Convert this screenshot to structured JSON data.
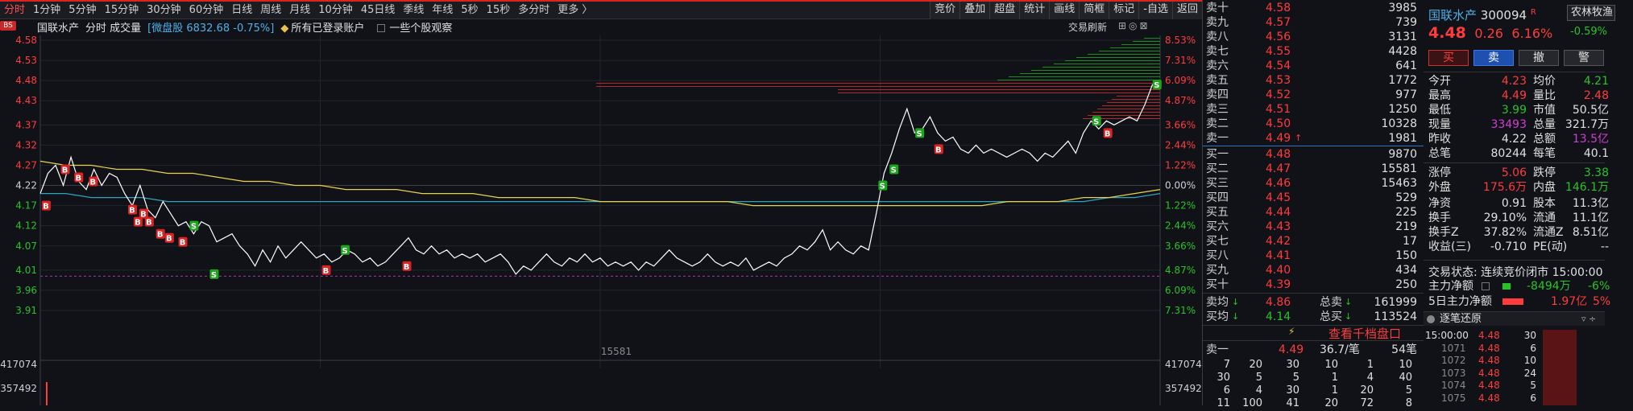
{
  "colors": {
    "up": "#ff3b3b",
    "down": "#26c426",
    "price_line": "#ffffff",
    "avg_line": "#e8d44a",
    "ma_line": "#2aa6c0",
    "flat": "#e0e0e0"
  },
  "toolbar": {
    "tabs": [
      "分时",
      "1分钟",
      "5分钟",
      "15分钟",
      "30分钟",
      "60分钟",
      "日线",
      "周线",
      "月线",
      "10分钟",
      "45日线",
      "季线",
      "年线",
      "5秒",
      "15秒",
      "多分时",
      "更多 〉"
    ],
    "active": "分时",
    "tools": [
      "竞价",
      "叠加",
      "超盘",
      "统计",
      "画线",
      "简框",
      "标记",
      "-自选",
      "返回"
    ]
  },
  "info": {
    "stock": "国联水产",
    "mode": "分时 成交量",
    "index": "[微盘股 6832.68 -0.75%]",
    "account": "所有已登录账户",
    "watch": "一些个股观察",
    "refresh": "交易刷新",
    "badge": "BS"
  },
  "chart_data": {
    "type": "line",
    "title": "国联水产 分时",
    "prev_close": 4.22,
    "price_ticks": [
      "4.58",
      "4.53",
      "4.48",
      "4.43",
      "4.37",
      "4.32",
      "4.27",
      "4.22",
      "4.17",
      "4.12",
      "4.07",
      "4.01",
      "3.96",
      "3.91"
    ],
    "pct_ticks": [
      "8.53%",
      "7.31%",
      "6.09%",
      "4.87%",
      "3.66%",
      "2.44%",
      "1.22%",
      "0.00%",
      "1.22%",
      "2.44%",
      "3.66%",
      "4.87%",
      "6.09%",
      "7.31%"
    ],
    "volume_ticks": [
      "417074",
      "357492"
    ],
    "volume_center_label": "15581",
    "series": [
      {
        "values": [
          4.2,
          4.25,
          4.27,
          4.22,
          4.29,
          4.23,
          4.21,
          4.26,
          4.22,
          4.25,
          4.24,
          4.2,
          4.17,
          4.22,
          4.16,
          4.14,
          4.18,
          4.15,
          4.12,
          4.13,
          4.1,
          4.13,
          4.12,
          4.08,
          4.09,
          4.1,
          4.07,
          4.05,
          4.02,
          4.06,
          4.03,
          4.07,
          4.04,
          4.06,
          4.08,
          4.06,
          4.04,
          4.05,
          4.03,
          4.04,
          4.06,
          4.05,
          4.03,
          4.04,
          4.02,
          4.03,
          4.05,
          4.07,
          4.09,
          4.06,
          4.05,
          4.07,
          4.05,
          4.06,
          4.04,
          4.05,
          4.04,
          4.05,
          4.03,
          4.04,
          4.05,
          4.03,
          4.0,
          4.02,
          4.01,
          4.03,
          4.05,
          4.03,
          4.02,
          4.04,
          4.03,
          4.05,
          4.03,
          4.04,
          4.02,
          4.03,
          4.02,
          4.03,
          4.01,
          4.03,
          4.02,
          4.04,
          4.06,
          4.04,
          4.03,
          4.02,
          4.03,
          4.05,
          4.03,
          4.02,
          4.03,
          4.02,
          4.04,
          4.01,
          4.02,
          4.03,
          4.02,
          4.04,
          4.05,
          4.07,
          4.06,
          4.08,
          4.11,
          4.06,
          4.08,
          4.06,
          4.05,
          4.07,
          4.06,
          4.15,
          4.25,
          4.3,
          4.36,
          4.41,
          4.35,
          4.36,
          4.39,
          4.35,
          4.33,
          4.34,
          4.31,
          4.3,
          4.32,
          4.3,
          4.31,
          4.3,
          4.29,
          4.3,
          4.31,
          4.3,
          4.28,
          4.3,
          4.29,
          4.31,
          4.33,
          4.3,
          4.35,
          4.38,
          4.36,
          4.38,
          4.37,
          4.38,
          4.39,
          4.38,
          4.42,
          4.47,
          4.48
        ]
      },
      {
        "values": [
          4.28,
          4.27,
          4.27,
          4.26,
          4.26,
          4.25,
          4.25,
          4.24,
          4.23,
          4.23,
          4.22,
          4.22,
          4.21,
          4.21,
          4.21,
          4.2,
          4.2,
          4.2,
          4.19,
          4.19,
          4.19,
          4.19,
          4.18,
          4.18,
          4.18,
          4.18,
          4.18,
          4.18,
          4.17,
          4.17,
          4.17,
          4.17,
          4.17,
          4.17,
          4.17,
          4.17,
          4.17,
          4.17,
          4.18,
          4.18,
          4.18,
          4.19,
          4.19,
          4.2,
          4.21
        ]
      },
      {
        "values": [
          4.2,
          4.2,
          4.19,
          4.19,
          4.19,
          4.18,
          4.18,
          4.18,
          4.18,
          4.18,
          4.18,
          4.18,
          4.18,
          4.18,
          4.18,
          4.18,
          4.18,
          4.18,
          4.18,
          4.18,
          4.18,
          4.18,
          4.18,
          4.18,
          4.18,
          4.18,
          4.18,
          4.18,
          4.18,
          4.18,
          4.18,
          4.18,
          4.18,
          4.18,
          4.18,
          4.18,
          4.18,
          4.18,
          4.18,
          4.18,
          4.18,
          4.18,
          4.19,
          4.19,
          4.2
        ]
      }
    ],
    "markers": [
      {
        "t": "B",
        "x": 0.022,
        "y": 4.26
      },
      {
        "t": "B",
        "x": 0.034,
        "y": 4.24
      },
      {
        "t": "B",
        "x": 0.047,
        "y": 4.23
      },
      {
        "t": "B",
        "x": 0.005,
        "y": 4.17
      },
      {
        "t": "B",
        "x": 0.082,
        "y": 4.16
      },
      {
        "t": "B",
        "x": 0.087,
        "y": 4.13
      },
      {
        "t": "B",
        "x": 0.092,
        "y": 4.15
      },
      {
        "t": "B",
        "x": 0.097,
        "y": 4.13
      },
      {
        "t": "B",
        "x": 0.107,
        "y": 4.1
      },
      {
        "t": "B",
        "x": 0.115,
        "y": 4.09
      },
      {
        "t": "B",
        "x": 0.127,
        "y": 4.08
      },
      {
        "t": "S",
        "x": 0.137,
        "y": 4.12
      },
      {
        "t": "S",
        "x": 0.155,
        "y": 4.0
      },
      {
        "t": "B",
        "x": 0.255,
        "y": 4.01
      },
      {
        "t": "S",
        "x": 0.272,
        "y": 4.06
      },
      {
        "t": "B",
        "x": 0.327,
        "y": 4.02
      },
      {
        "t": "S",
        "x": 0.752,
        "y": 4.22
      },
      {
        "t": "S",
        "x": 0.762,
        "y": 4.26
      },
      {
        "t": "S",
        "x": 0.785,
        "y": 4.35
      },
      {
        "t": "B",
        "x": 0.802,
        "y": 4.31
      },
      {
        "t": "S",
        "x": 0.943,
        "y": 4.38
      },
      {
        "t": "B",
        "x": 0.953,
        "y": 4.35
      },
      {
        "t": "S",
        "x": 0.997,
        "y": 4.47
      }
    ]
  },
  "orderbook": {
    "asks": [
      {
        "label": "卖十",
        "price": "4.58",
        "vol": "3985"
      },
      {
        "label": "卖九",
        "price": "4.57",
        "vol": "739"
      },
      {
        "label": "卖八",
        "price": "4.56",
        "vol": "3131"
      },
      {
        "label": "卖七",
        "price": "4.55",
        "vol": "4428"
      },
      {
        "label": "卖六",
        "price": "4.54",
        "vol": "641"
      },
      {
        "label": "卖五",
        "price": "4.53",
        "vol": "1772"
      },
      {
        "label": "卖四",
        "price": "4.52",
        "vol": "977"
      },
      {
        "label": "卖三",
        "price": "4.51",
        "vol": "1250"
      },
      {
        "label": "卖二",
        "price": "4.50",
        "vol": "10328"
      },
      {
        "label": "卖一",
        "price": "4.49",
        "vol": "1981"
      }
    ],
    "bids": [
      {
        "label": "买一",
        "price": "4.48",
        "vol": "9870"
      },
      {
        "label": "买二",
        "price": "4.47",
        "vol": "15581"
      },
      {
        "label": "买三",
        "price": "4.46",
        "vol": "15463"
      },
      {
        "label": "买四",
        "price": "4.45",
        "vol": "529"
      },
      {
        "label": "买五",
        "price": "4.44",
        "vol": "225"
      },
      {
        "label": "买六",
        "price": "4.43",
        "vol": "219"
      },
      {
        "label": "买七",
        "price": "4.42",
        "vol": "17"
      },
      {
        "label": "买八",
        "price": "4.41",
        "vol": "150"
      },
      {
        "label": "买九",
        "price": "4.40",
        "vol": "434"
      },
      {
        "label": "买十",
        "price": "4.39",
        "vol": "250"
      }
    ],
    "avg_sell_label": "卖均",
    "avg_sell": "4.86",
    "total_sell_label": "总卖",
    "total_sell": "161999",
    "avg_buy_label": "买均",
    "avg_buy": "4.14",
    "total_buy_label": "总买",
    "total_buy": "113524",
    "view_1000": "查看千档盘口",
    "sell1_label": "卖一",
    "sell1_price": "4.49",
    "per_order": "36.7/笔",
    "orders": "54笔",
    "queue": [
      [
        "7",
        "20",
        "30",
        "10",
        "1",
        "10"
      ],
      [
        "30",
        "5",
        "5",
        "1",
        "4",
        "40"
      ],
      [
        "6",
        "4",
        "30",
        "1",
        "20",
        "5"
      ],
      [
        "11",
        "100",
        "41",
        "20",
        "72",
        "8"
      ]
    ]
  },
  "detail": {
    "name": "国联水产",
    "code": "300094",
    "flag": "R",
    "next": "农林牧渔",
    "price": "4.48",
    "change": "0.26",
    "pct": "6.16%",
    "next_pct": "-0.59%",
    "buttons": [
      "买",
      "卖",
      "撤",
      "警"
    ],
    "rows": [
      [
        "今开",
        "4.23",
        "均价",
        "4.21"
      ],
      [
        "最高",
        "4.49",
        "量比",
        "2.48"
      ],
      [
        "最低",
        "3.99",
        "市值",
        "50.5亿"
      ],
      [
        "现量",
        "33493",
        "总量",
        "321.7万"
      ],
      [
        "昨收",
        "4.22",
        "总额",
        "13.5亿"
      ],
      [
        "总笔",
        "80244",
        "每笔",
        "40.1"
      ],
      [
        "涨停",
        "5.06",
        "跌停",
        "3.38"
      ],
      [
        "外盘",
        "175.6万",
        "内盘",
        "146.1万"
      ],
      [
        "净资",
        "0.91",
        "股本",
        "11.3亿"
      ],
      [
        "换手",
        "29.10%",
        "流通",
        "11.1亿"
      ],
      [
        "换手Z",
        "37.82%",
        "流通Z",
        "8.51亿"
      ],
      [
        "收益(三)",
        "-0.710",
        "PE(动)",
        "--"
      ]
    ],
    "status": "交易状态: 连续竞价闭市 15:00:00",
    "main_flow_label": "主力净额",
    "main_flow": "-8494万",
    "main_flow_pct": "-6%",
    "main5_label": "5日主力净额",
    "main5": "1.97亿",
    "main5_pct": "5%",
    "tick_title": "逐笔还原",
    "ticks": [
      [
        "15:00:00",
        "4.48",
        "30"
      ],
      [
        "1071",
        "4.48",
        "6"
      ],
      [
        "1072",
        "4.48",
        "10"
      ],
      [
        "1073",
        "4.48",
        "24"
      ],
      [
        "1074",
        "4.48",
        "5"
      ],
      [
        "1075",
        "4.48",
        "6"
      ]
    ]
  }
}
